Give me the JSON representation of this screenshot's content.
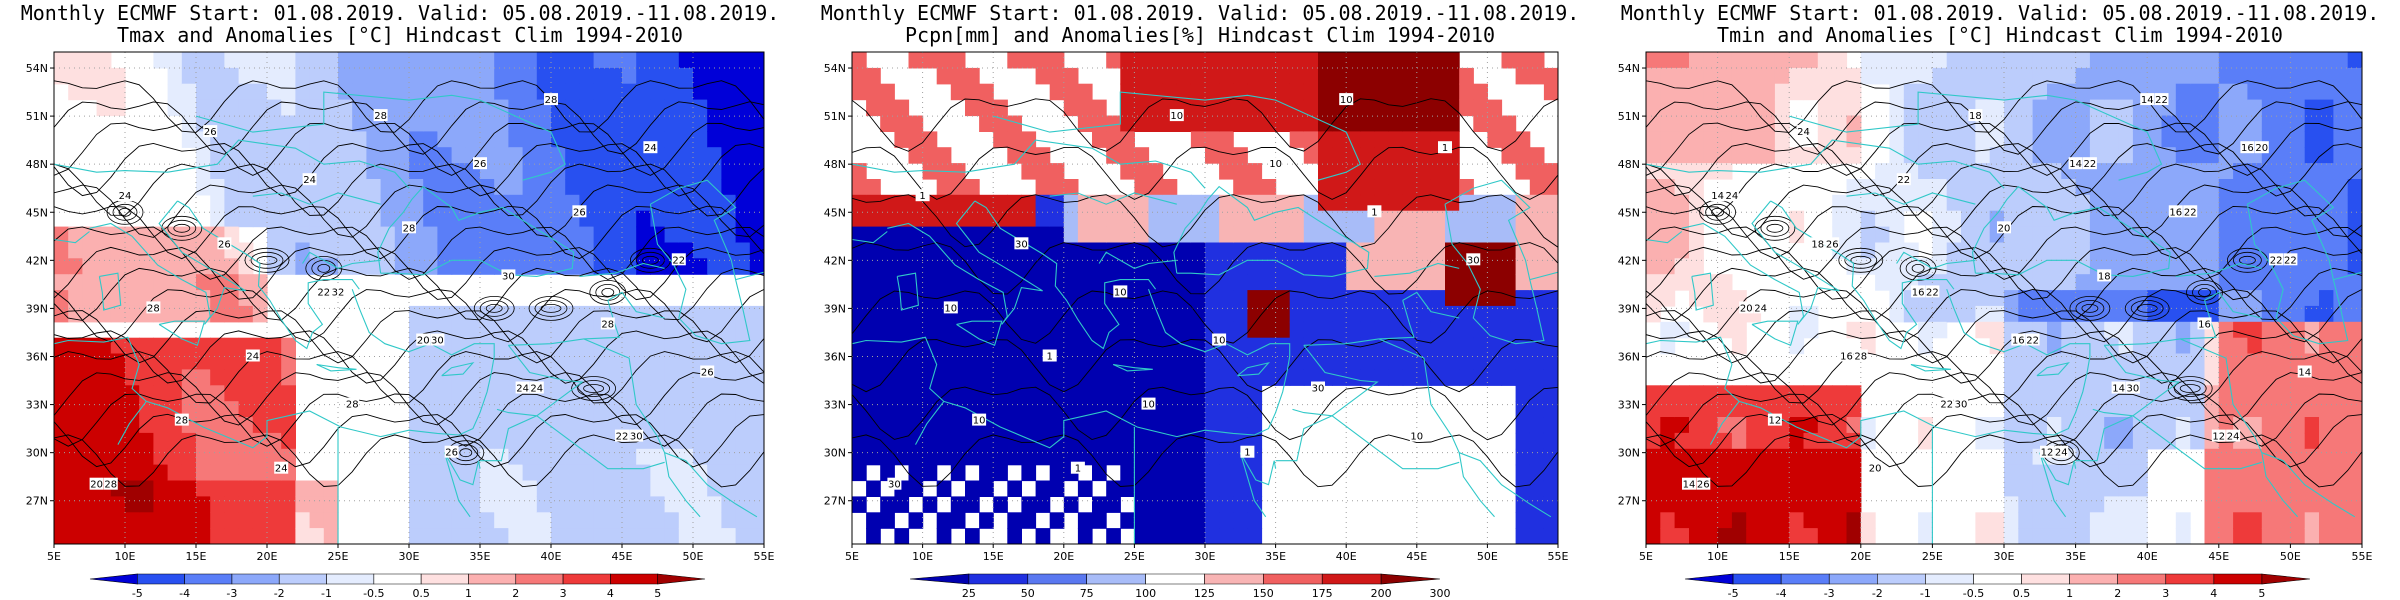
{
  "panels": [
    {
      "id": "precip",
      "title_line1": "Monthly ECMWF Start: 01.08.2019. Valid: 05.08.2019.-11.08.2019.",
      "title_line2": "Pcpn[mm] and Anomalies[%] Hindcast Clim 1994-2010",
      "colorbar": [
        "25",
        "50",
        "75",
        "100",
        "125",
        "150",
        "175",
        "200",
        "300"
      ],
      "colors": [
        "#0000b0",
        "#2030e0",
        "#5a78f0",
        "#a8bcf8",
        "#ffffff",
        "#f8b4b4",
        "#f06060",
        "#d01818",
        "#8c0000"
      ],
      "contour_labels": [
        "30",
        "10",
        "30",
        "10",
        "10",
        "30",
        "1",
        "1",
        "10",
        "1",
        "10",
        "1",
        "10",
        "30",
        "1",
        "10",
        "10",
        "1",
        "10"
      ]
    },
    {
      "id": "tmin",
      "title_line1": "Monthly ECMWF Start: 01.08.2019. Valid: 05.08.2019.-11.08.2019.",
      "title_line2": "Tmin and Anomalies [°C] Hindcast Clim 1994-2010",
      "colorbar": [
        "-5",
        "-4",
        "-3",
        "-2",
        "-1",
        "-0.5",
        "0.5",
        "1",
        "2",
        "3",
        "4",
        "5"
      ],
      "colors": [
        "#0000d8",
        "#2850f0",
        "#5a7ef8",
        "#8ca8fa",
        "#bccdfc",
        "#e4ecfe",
        "#ffffff",
        "#fee0e0",
        "#fbb0b0",
        "#f67878",
        "#ee3a3a",
        "#cc0000",
        "#a00000"
      ],
      "contour_labels": [
        "14",
        "12",
        "14",
        "16",
        "16",
        "18",
        "14",
        "16",
        "14",
        "12",
        "22",
        "16",
        "20",
        "22",
        "16",
        "14",
        "18",
        "20",
        "12",
        "14",
        "16",
        "18",
        "20",
        "22",
        "24",
        "26",
        "24",
        "30",
        "22",
        "22",
        "26",
        "24",
        "20",
        "22",
        "24",
        "30",
        "28",
        "24",
        "22",
        "22",
        "22"
      ]
    },
    {
      "id": "tmax",
      "title_line1": "Monthly ECMWF Start: 01.08.2019. Valid: 05.08.2019.-11.08.2019.",
      "title_line2": "Tmax and Anomalies [°C] Hindcast Clim 1994-2010",
      "colorbar": [
        "-5",
        "-4",
        "-3",
        "-2",
        "-1",
        "-0.5",
        "0.5",
        "1",
        "2",
        "3",
        "4",
        "5"
      ],
      "colors": [
        "#0000d8",
        "#2850f0",
        "#5a7ef8",
        "#8ca8fa",
        "#bccdfc",
        "#e4ecfe",
        "#ffffff",
        "#fee0e0",
        "#fbb0b0",
        "#f67878",
        "#ee3a3a",
        "#cc0000",
        "#a00000"
      ],
      "contour_labels": [
        "20",
        "22",
        "24",
        "20",
        "22",
        "26",
        "24",
        "24",
        "28",
        "26",
        "28",
        "24",
        "28",
        "22",
        "26",
        "26",
        "28",
        "24",
        "28",
        "26",
        "28",
        "30",
        "28",
        "24",
        "26",
        "28",
        "30",
        "24",
        "30",
        "32"
      ]
    }
  ],
  "lat_labels": [
    "54N",
    "51N",
    "48N",
    "45N",
    "42N",
    "39N",
    "36N",
    "33N",
    "30N",
    "27N"
  ],
  "lon_labels": [
    "5E",
    "10E",
    "15E",
    "20E",
    "25E",
    "30E",
    "35E",
    "40E",
    "45E",
    "50E",
    "55E"
  ],
  "map_colors": {
    "coast": "#30c8c8",
    "contour": "#000000",
    "grid": "#a0a0a0"
  }
}
